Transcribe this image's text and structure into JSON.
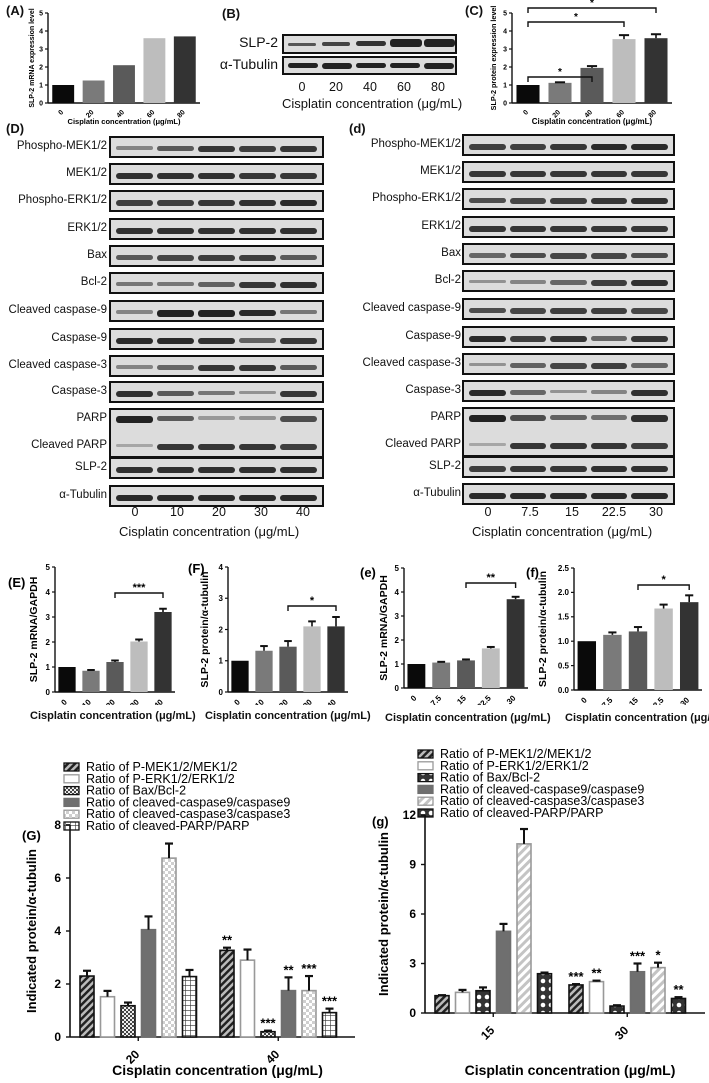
{
  "panels": {
    "A": {
      "label": "(A)"
    },
    "B": {
      "label": "(B)",
      "rows": [
        "SLP-2",
        "α-Tubulin"
      ],
      "lanes": [
        "0",
        "20",
        "40",
        "60",
        "80"
      ],
      "xlabel": "Cisplatin concentration (μg/mL)"
    },
    "C": {
      "label": "(C)"
    },
    "D": {
      "label": "(D)",
      "rows": [
        "Phospho-MEK1/2",
        "MEK1/2",
        "Phospho-ERK1/2",
        "ERK1/2",
        "Bax",
        "Bcl-2",
        "Cleaved caspase-9",
        "Caspase-9",
        "Cleaved caspase-3",
        "Caspase-3",
        "PARP",
        "Cleaved PARP",
        "SLP-2",
        "α-Tubulin"
      ],
      "lanes": [
        "0",
        "10",
        "20",
        "30",
        "40"
      ],
      "xlabel": "Cisplatin concentration (μg/mL)"
    },
    "d": {
      "label": "(d)",
      "rows": [
        "Phospho-MEK1/2",
        "MEK1/2",
        "Phospho-ERK1/2",
        "ERK1/2",
        "Bax",
        "Bcl-2",
        "Cleaved caspase-9",
        "Caspase-9",
        "Cleaved caspase-3",
        "Caspase-3",
        "PARP",
        "Cleaved PARP",
        "SLP-2",
        "α-Tubulin"
      ],
      "lanes": [
        "0",
        "7.5",
        "15",
        "22.5",
        "30"
      ],
      "xlabel": "Cisplatin concentration (μg/mL)"
    },
    "E": {
      "label": "(E)"
    },
    "F": {
      "label": "(F)"
    },
    "e": {
      "label": "(e)"
    },
    "f": {
      "label": "(f)"
    },
    "G": {
      "label": "(G)"
    },
    "g": {
      "label": "(g)"
    }
  },
  "colors": {
    "black": "#0a0a0a",
    "dark_gray": "#5a5a5a",
    "mid_gray": "#7a7a7a",
    "light_gray": "#bdbdbd",
    "charcoal": "#333333"
  },
  "chart_data": [
    {
      "id": "A",
      "type": "bar",
      "title": "",
      "categories": [
        "0",
        "20",
        "40",
        "60",
        "80"
      ],
      "values": [
        1.0,
        1.25,
        2.1,
        3.6,
        3.7
      ],
      "xlabel": "Cisplatin concentration (μg/mL)",
      "ylabel": "SLP-2 mRNA expression level",
      "ylim": [
        0,
        5
      ],
      "yticks": [
        0,
        1,
        2,
        3,
        4,
        5
      ]
    },
    {
      "id": "C",
      "type": "bar",
      "categories": [
        "0",
        "20",
        "40",
        "60",
        "80"
      ],
      "values": [
        1.0,
        1.12,
        1.95,
        3.55,
        3.6
      ],
      "errors": [
        0.0,
        0.03,
        0.1,
        0.22,
        0.22
      ],
      "xlabel": "Cisplatin concentration (μg/mL)",
      "ylabel": "SLP-2 protein expression level",
      "ylim": [
        0,
        5
      ],
      "yticks": [
        0,
        1,
        2,
        3,
        4,
        5
      ],
      "annotations": [
        {
          "from": "0",
          "to": "40",
          "text": "*"
        },
        {
          "from": "0",
          "to": "60",
          "text": "*"
        },
        {
          "from": "0",
          "to": "80",
          "text": "*"
        }
      ]
    },
    {
      "id": "E",
      "type": "bar",
      "categories": [
        "0",
        "10",
        "20",
        "30",
        "40"
      ],
      "values": [
        1.0,
        0.85,
        1.2,
        2.02,
        3.2
      ],
      "errors": [
        0.0,
        0.03,
        0.06,
        0.08,
        0.13
      ],
      "xlabel": "Cisplatin concentration (μg/mL)",
      "ylabel": "SLP-2 mRNA/GAPDH",
      "ylim": [
        0,
        5
      ],
      "yticks": [
        0,
        1,
        2,
        3,
        4,
        5
      ],
      "annotations": [
        {
          "from": "20",
          "to": "40",
          "text": "***"
        }
      ]
    },
    {
      "id": "F",
      "type": "bar",
      "categories": [
        "0",
        "10",
        "20",
        "30",
        "40"
      ],
      "values": [
        1.0,
        1.32,
        1.45,
        2.1,
        2.1
      ],
      "errors": [
        0.0,
        0.15,
        0.18,
        0.16,
        0.3
      ],
      "xlabel": "Cisplatin concentration (μg/mL)",
      "ylabel": "SLP-2 protein/α-tubulin",
      "ylim": [
        0,
        4
      ],
      "yticks": [
        0,
        1,
        2,
        3,
        4
      ],
      "annotations": [
        {
          "from": "20",
          "to": "40",
          "text": "*"
        }
      ]
    },
    {
      "id": "e",
      "type": "bar",
      "categories": [
        "0",
        "7.5",
        "15",
        "22.5",
        "30"
      ],
      "values": [
        1.0,
        1.06,
        1.15,
        1.65,
        3.7
      ],
      "errors": [
        0.0,
        0.03,
        0.04,
        0.06,
        0.1
      ],
      "xlabel": "Cisplatin concentration (μg/mL)",
      "ylabel": "SLP-2 mRNA/GAPDH",
      "ylim": [
        0,
        5
      ],
      "yticks": [
        0,
        1,
        2,
        3,
        4,
        5
      ],
      "annotations": [
        {
          "from": "15",
          "to": "30",
          "text": "**"
        }
      ]
    },
    {
      "id": "f",
      "type": "bar",
      "categories": [
        "0",
        "7.5",
        "15",
        "22.5",
        "30"
      ],
      "values": [
        1.0,
        1.13,
        1.2,
        1.67,
        1.8
      ],
      "errors": [
        0.0,
        0.05,
        0.09,
        0.08,
        0.14
      ],
      "xlabel": "Cisplatin concentration (μg/mL)",
      "ylabel": "SLP-2 protein/α-tubulin",
      "ylim": [
        0,
        2.5
      ],
      "yticks": [
        0.0,
        0.5,
        1.0,
        1.5,
        2.0,
        2.5
      ],
      "annotations": [
        {
          "from": "15",
          "to": "30",
          "text": "*"
        }
      ]
    },
    {
      "id": "G",
      "type": "bar",
      "categories": [
        "20",
        "40"
      ],
      "xlabel": "Cisplatin concentration (μg/mL)",
      "ylabel": "Indicated protein/α-tubulin",
      "ylim": [
        0,
        8
      ],
      "yticks": [
        0,
        2,
        4,
        6,
        8
      ],
      "legend_position": "top",
      "series": [
        {
          "name": "Ratio of P-MEK1/2/MEK1/2",
          "values": [
            2.3,
            3.27
          ],
          "errors": [
            0.2,
            0.1
          ],
          "sig": [
            "",
            "**"
          ],
          "pattern": "diag-dark"
        },
        {
          "name": "Ratio of P-ERK1/2/ERK1/2",
          "values": [
            1.52,
            2.9
          ],
          "errors": [
            0.22,
            0.4
          ],
          "sig": [
            "",
            ""
          ],
          "pattern": "open"
        },
        {
          "name": "Ratio of Bax/Bcl-2",
          "values": [
            1.18,
            0.2
          ],
          "errors": [
            0.12,
            0.04
          ],
          "sig": [
            "",
            "***"
          ],
          "pattern": "checker-dark"
        },
        {
          "name": "Ratio of cleaved-caspase9/caspase9",
          "values": [
            4.05,
            1.75
          ],
          "errors": [
            0.5,
            0.5
          ],
          "sig": [
            "",
            "**"
          ],
          "pattern": "solid-gray"
        },
        {
          "name": "Ratio of cleaved-caspase3/caspase3",
          "values": [
            6.75,
            1.75
          ],
          "errors": [
            0.55,
            0.55
          ],
          "sig": [
            "",
            "***"
          ],
          "pattern": "checker-light"
        },
        {
          "name": "Ratio of cleaved-PARP/PARP",
          "values": [
            2.28,
            0.92
          ],
          "errors": [
            0.25,
            0.15
          ],
          "sig": [
            "",
            "***"
          ],
          "pattern": "grid"
        }
      ]
    },
    {
      "id": "g",
      "type": "bar",
      "categories": [
        "15",
        "30"
      ],
      "xlabel": "Cisplatin concentration (μg/mL)",
      "ylabel": "Indicated protein/α-tubulin",
      "ylim": [
        0,
        12
      ],
      "yticks": [
        0,
        3,
        6,
        9,
        12
      ],
      "legend_position": "top",
      "series": [
        {
          "name": "Ratio of P-MEK1/2/MEK1/2",
          "values": [
            1.05,
            1.7
          ],
          "errors": [
            0.03,
            0.05
          ],
          "sig": [
            "",
            "***"
          ],
          "pattern": "diag-dark"
        },
        {
          "name": "Ratio of P-ERK1/2/ERK1/2",
          "values": [
            1.25,
            1.9
          ],
          "errors": [
            0.15,
            0.06
          ],
          "sig": [
            "",
            "**"
          ],
          "pattern": "open"
        },
        {
          "name": "Ratio of Bax/Bcl-2",
          "values": [
            1.35,
            0.42
          ],
          "errors": [
            0.2,
            0.05
          ],
          "sig": [
            "",
            ""
          ],
          "pattern": "dots-dark"
        },
        {
          "name": "Ratio of cleaved-caspase9/caspase9",
          "values": [
            4.95,
            2.5
          ],
          "errors": [
            0.45,
            0.5
          ],
          "sig": [
            "",
            "***"
          ],
          "pattern": "solid-gray"
        },
        {
          "name": "Ratio of cleaved-caspase3/caspase3",
          "values": [
            10.25,
            2.75
          ],
          "errors": [
            0.9,
            0.3
          ],
          "sig": [
            "",
            "*"
          ],
          "pattern": "diag-light"
        },
        {
          "name": "Ratio of cleaved-PARP/PARP",
          "values": [
            2.38,
            0.88
          ],
          "errors": [
            0.07,
            0.08
          ],
          "sig": [
            "",
            "**"
          ],
          "pattern": "dots-dark"
        }
      ]
    }
  ]
}
